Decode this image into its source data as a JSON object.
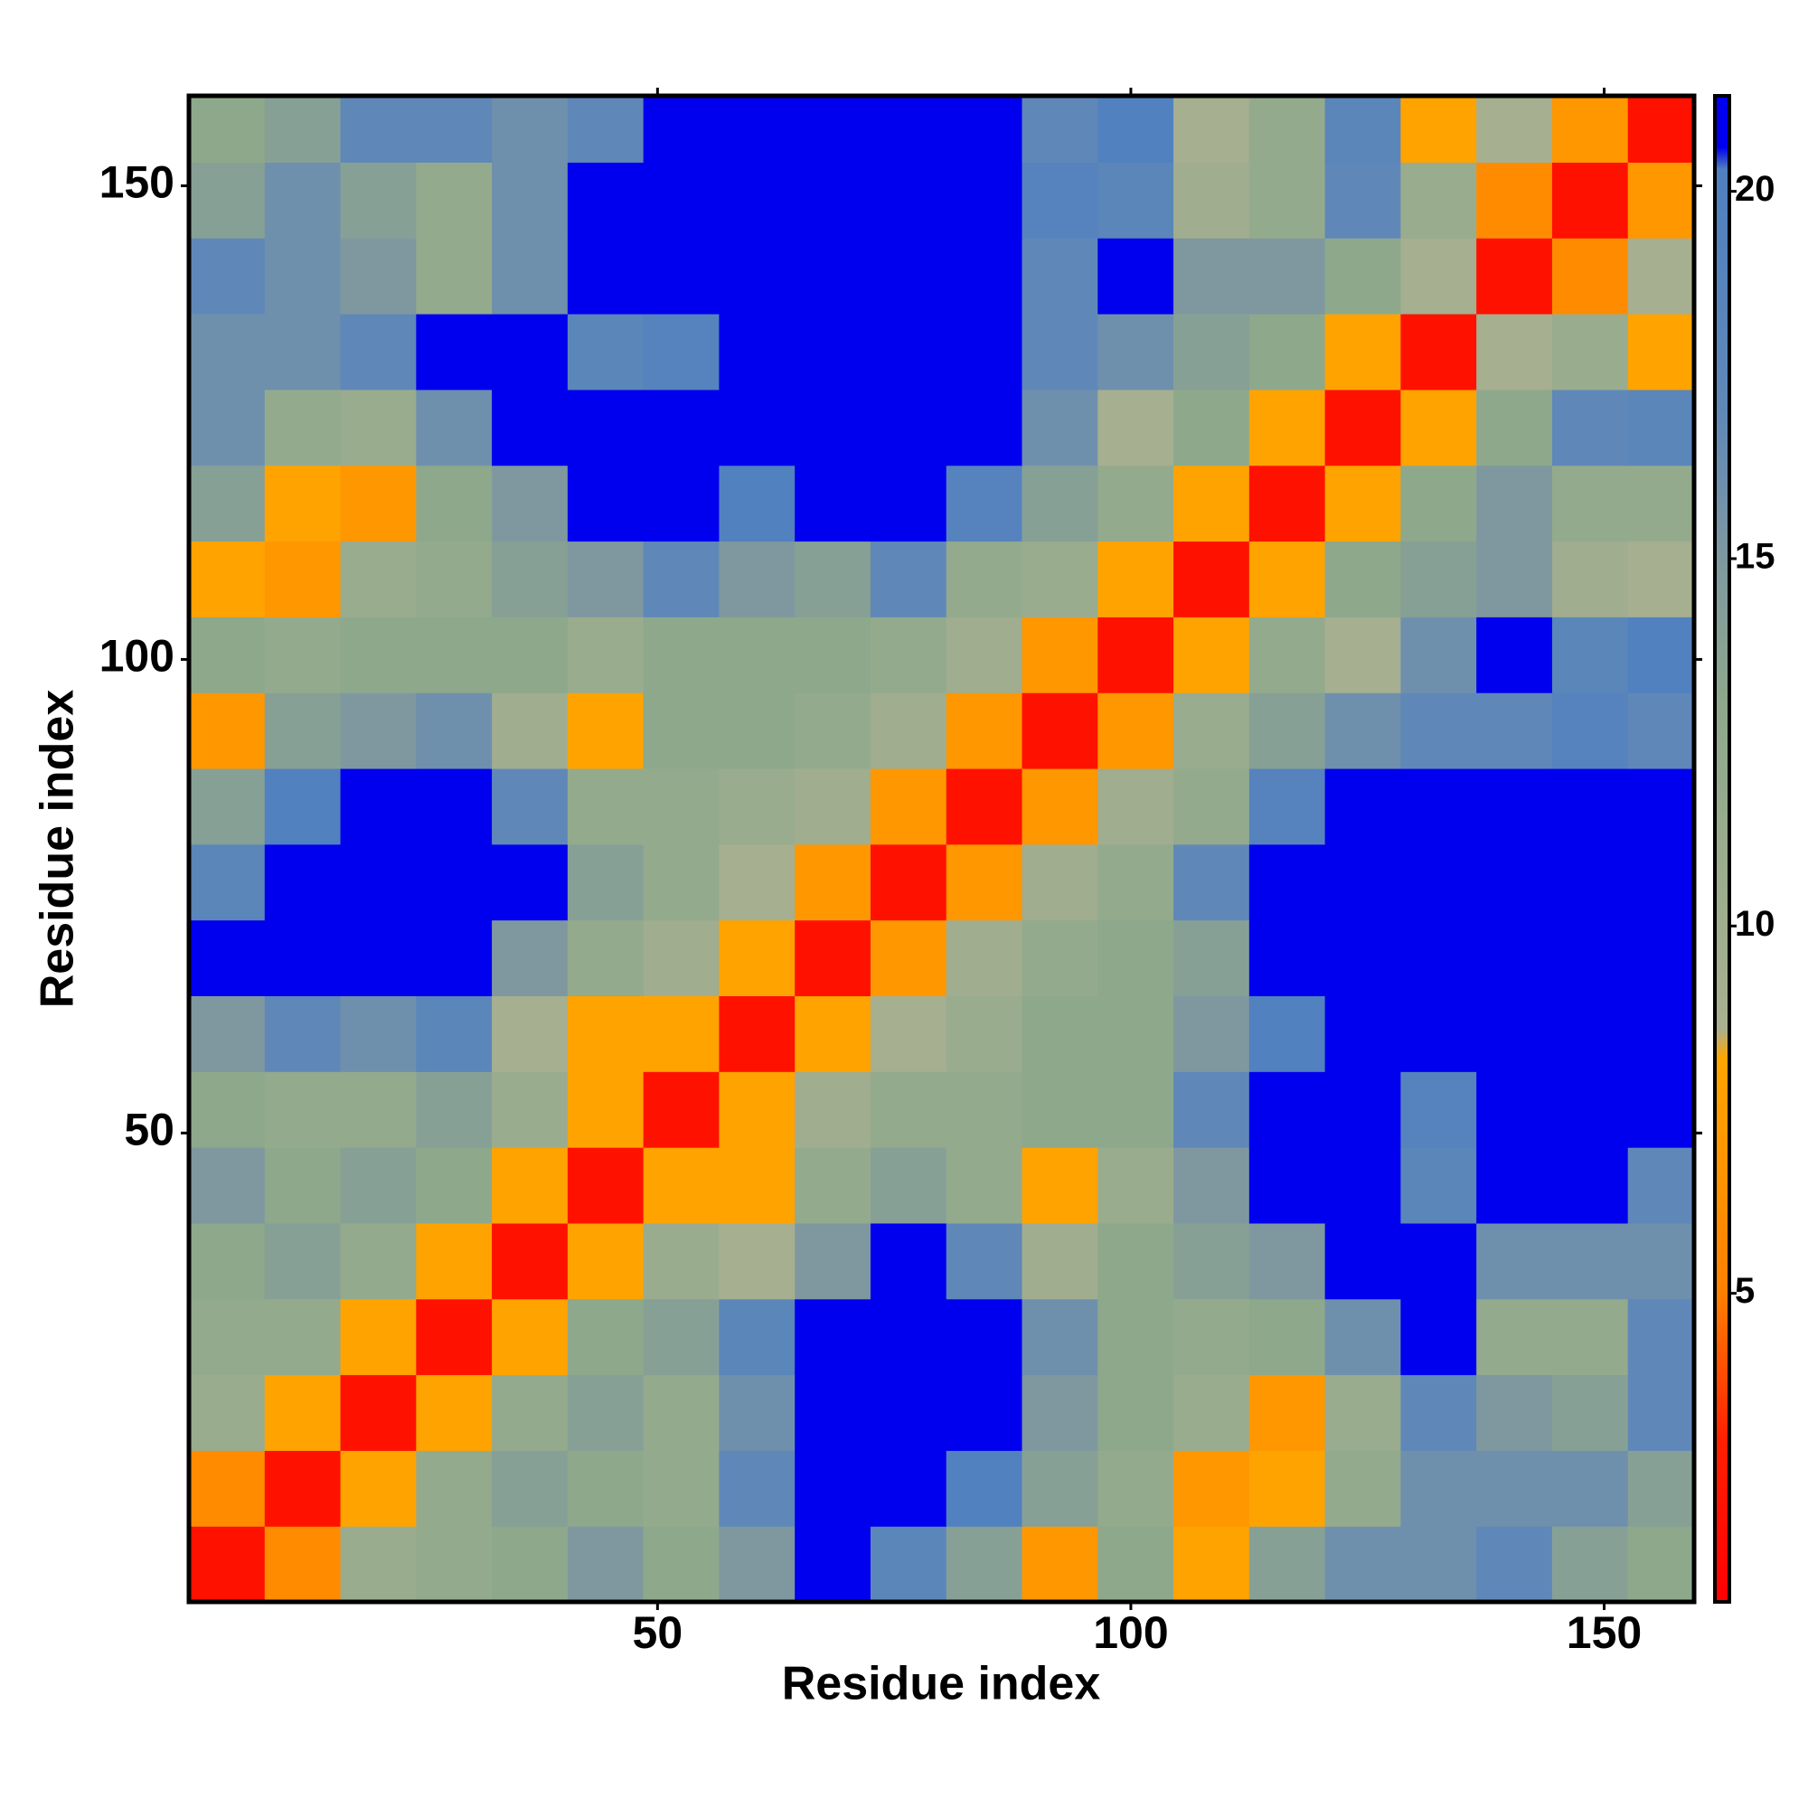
{
  "chart_data": {
    "type": "heatmap",
    "xlabel": "Residue index",
    "ylabel": "Residue index",
    "xbins": [
      0.5,
      8.5,
      16.5,
      24.5,
      32.5,
      40.5,
      48.5,
      56.5,
      64.5,
      72.5,
      80.5,
      88.5,
      96.5,
      104.5,
      112.5,
      120.5,
      128.5,
      136.5,
      144.5,
      152.5,
      159.5
    ],
    "ybins": [
      0.5,
      8.5,
      16.5,
      24.5,
      32.5,
      40.5,
      48.5,
      56.5,
      64.5,
      72.5,
      80.5,
      88.5,
      96.5,
      104.5,
      112.5,
      120.5,
      128.5,
      136.5,
      144.5,
      152.5,
      159.5
    ],
    "z": [
      [
        2,
        6,
        11,
        12,
        13,
        15,
        13,
        15,
        21,
        18,
        14,
        7,
        13,
        8,
        14,
        16,
        16,
        17,
        14,
        13
      ],
      [
        6,
        2,
        8,
        12,
        14,
        13,
        12,
        17,
        21,
        21,
        20,
        14,
        12,
        7,
        8,
        12,
        16,
        16,
        16,
        14
      ],
      [
        11,
        8,
        2,
        8,
        12,
        14,
        12,
        16,
        21,
        21,
        21,
        15,
        13,
        11,
        7,
        11,
        17,
        15,
        14,
        17
      ],
      [
        12,
        12,
        8,
        2,
        8,
        13,
        14,
        18,
        21,
        21,
        21,
        16,
        13,
        12,
        13,
        16,
        21,
        12,
        12,
        17
      ],
      [
        13,
        14,
        12,
        8,
        2,
        8,
        11,
        9,
        15,
        21,
        17,
        10,
        13,
        14,
        15,
        21,
        21,
        16,
        16,
        16
      ],
      [
        15,
        13,
        14,
        13,
        8,
        2,
        8,
        8,
        12,
        14,
        12,
        8,
        11,
        15,
        21,
        21,
        18,
        21,
        21,
        17
      ],
      [
        13,
        12,
        12,
        14,
        11,
        8,
        2,
        8,
        10,
        12,
        12,
        13,
        13,
        17,
        21,
        21,
        19,
        21,
        21,
        21
      ],
      [
        15,
        17,
        16,
        18,
        9,
        8,
        8,
        2,
        8,
        9,
        11,
        13,
        13,
        15,
        20,
        21,
        21,
        21,
        21,
        21
      ],
      [
        21,
        21,
        21,
        21,
        15,
        12,
        10,
        8,
        2,
        7,
        10,
        12,
        13,
        14,
        21,
        21,
        21,
        21,
        21,
        21
      ],
      [
        18,
        21,
        21,
        21,
        21,
        14,
        12,
        9,
        7,
        2,
        7,
        10,
        12,
        17,
        21,
        21,
        21,
        21,
        21,
        21
      ],
      [
        14,
        20,
        21,
        21,
        17,
        12,
        12,
        11,
        10,
        7,
        2,
        7,
        10,
        12,
        19,
        21,
        21,
        21,
        21,
        21
      ],
      [
        7,
        14,
        15,
        16,
        10,
        8,
        13,
        13,
        12,
        10,
        7,
        2,
        7,
        11,
        14,
        16,
        17,
        17,
        19,
        17
      ],
      [
        13,
        12,
        13,
        13,
        13,
        11,
        13,
        13,
        13,
        12,
        10,
        7,
        2,
        8,
        12,
        9,
        16,
        21,
        18,
        20
      ],
      [
        8,
        7,
        11,
        12,
        14,
        15,
        17,
        15,
        14,
        17,
        12,
        11,
        8,
        2,
        8,
        13,
        14,
        15,
        10,
        9
      ],
      [
        14,
        8,
        7,
        13,
        15,
        21,
        21,
        20,
        21,
        21,
        19,
        14,
        12,
        8,
        2,
        8,
        13,
        15,
        12,
        12
      ],
      [
        16,
        12,
        11,
        16,
        21,
        21,
        21,
        21,
        21,
        21,
        21,
        16,
        9,
        13,
        8,
        2,
        8,
        13,
        17,
        18
      ],
      [
        16,
        16,
        17,
        21,
        21,
        18,
        19,
        21,
        21,
        21,
        21,
        17,
        16,
        14,
        13,
        8,
        2,
        9,
        11,
        8
      ],
      [
        17,
        16,
        15,
        12,
        16,
        21,
        21,
        21,
        21,
        21,
        21,
        17,
        21,
        15,
        15,
        13,
        9,
        2,
        6,
        9
      ],
      [
        14,
        16,
        14,
        12,
        16,
        21,
        21,
        21,
        21,
        21,
        21,
        19,
        18,
        10,
        12,
        17,
        11,
        6,
        2,
        7
      ],
      [
        13,
        14,
        17,
        17,
        16,
        17,
        21,
        21,
        21,
        21,
        21,
        17,
        20,
        9,
        12,
        18,
        8,
        9,
        7,
        2
      ]
    ],
    "xlim": [
      0.5,
      159.5
    ],
    "ylim": [
      0.5,
      159.5
    ],
    "xticks": [
      50,
      100,
      150
    ],
    "yticks": [
      50,
      100,
      150
    ],
    "clim": [
      0.8,
      21.3
    ],
    "cticks": [
      5,
      10,
      15,
      20
    ],
    "colorscale": [
      [
        0.8,
        "#ff0000"
      ],
      [
        3,
        "#ff2000"
      ],
      [
        5,
        "#ff8000"
      ],
      [
        8.2,
        "#ffa500"
      ],
      [
        8.6,
        "#a8b090"
      ],
      [
        13,
        "#8ea88c"
      ],
      [
        15,
        "#7f98a0"
      ],
      [
        17,
        "#5f88b8"
      ],
      [
        20.3,
        "#5080c0"
      ],
      [
        20.6,
        "#0000ee"
      ],
      [
        21.3,
        "#0000ee"
      ]
    ]
  }
}
